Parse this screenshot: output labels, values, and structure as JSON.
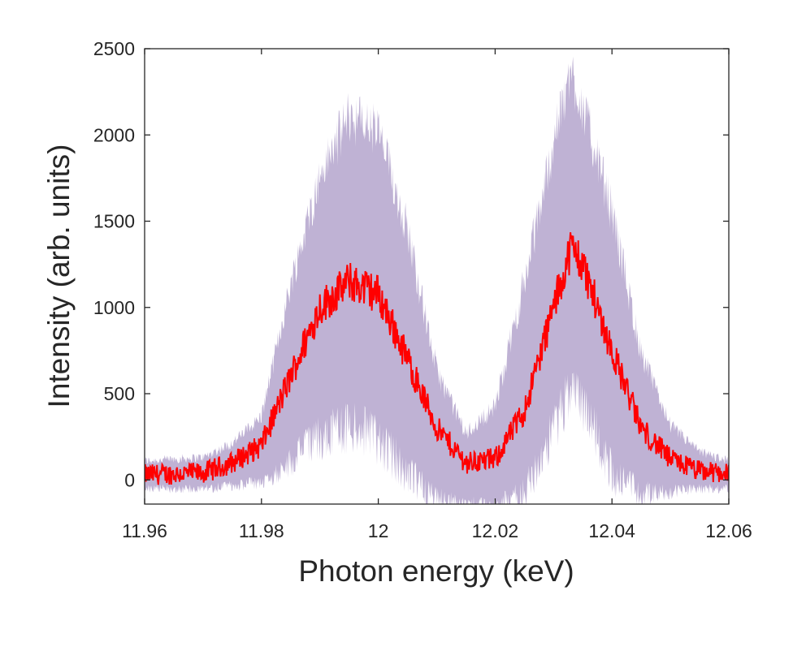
{
  "chart_data": {
    "type": "line",
    "xlabel": "Photon energy (keV)",
    "ylabel": "Intensity (arb. units)",
    "xlim": [
      11.96,
      12.06
    ],
    "ylim": [
      -140,
      2500
    ],
    "xticks": [
      "11.96",
      "11.98",
      "12",
      "12.02",
      "12.04",
      "12.06"
    ],
    "yticks": [
      "0",
      "500",
      "1000",
      "1500",
      "2000",
      "2500"
    ],
    "grid": false,
    "colors": {
      "mean": "#ff0000",
      "band": "#bfb2d4",
      "axes": "#262626"
    },
    "x": [
      11.96,
      11.97,
      11.975,
      11.98,
      11.985,
      11.99,
      11.995,
      12.0,
      12.005,
      12.01,
      12.015,
      12.02,
      12.025,
      12.03,
      12.033,
      12.035,
      12.04,
      12.045,
      12.05,
      12.055,
      12.06
    ],
    "series": [
      {
        "role": "mean",
        "values": [
          30,
          40,
          100,
          200,
          600,
          1000,
          1150,
          1080,
          700,
          300,
          100,
          120,
          400,
          1000,
          1350,
          1250,
          750,
          300,
          120,
          50,
          40
        ]
      },
      {
        "role": "band-upper",
        "values": [
          100,
          120,
          200,
          350,
          1100,
          1700,
          2050,
          1950,
          1400,
          600,
          250,
          400,
          1100,
          1900,
          2300,
          2100,
          1500,
          700,
          300,
          150,
          100
        ]
      },
      {
        "role": "band-lower",
        "values": [
          -40,
          -40,
          -20,
          0,
          150,
          300,
          370,
          300,
          80,
          -80,
          -120,
          -140,
          -50,
          350,
          600,
          500,
          100,
          -50,
          -50,
          -40,
          -40
        ]
      }
    ]
  }
}
